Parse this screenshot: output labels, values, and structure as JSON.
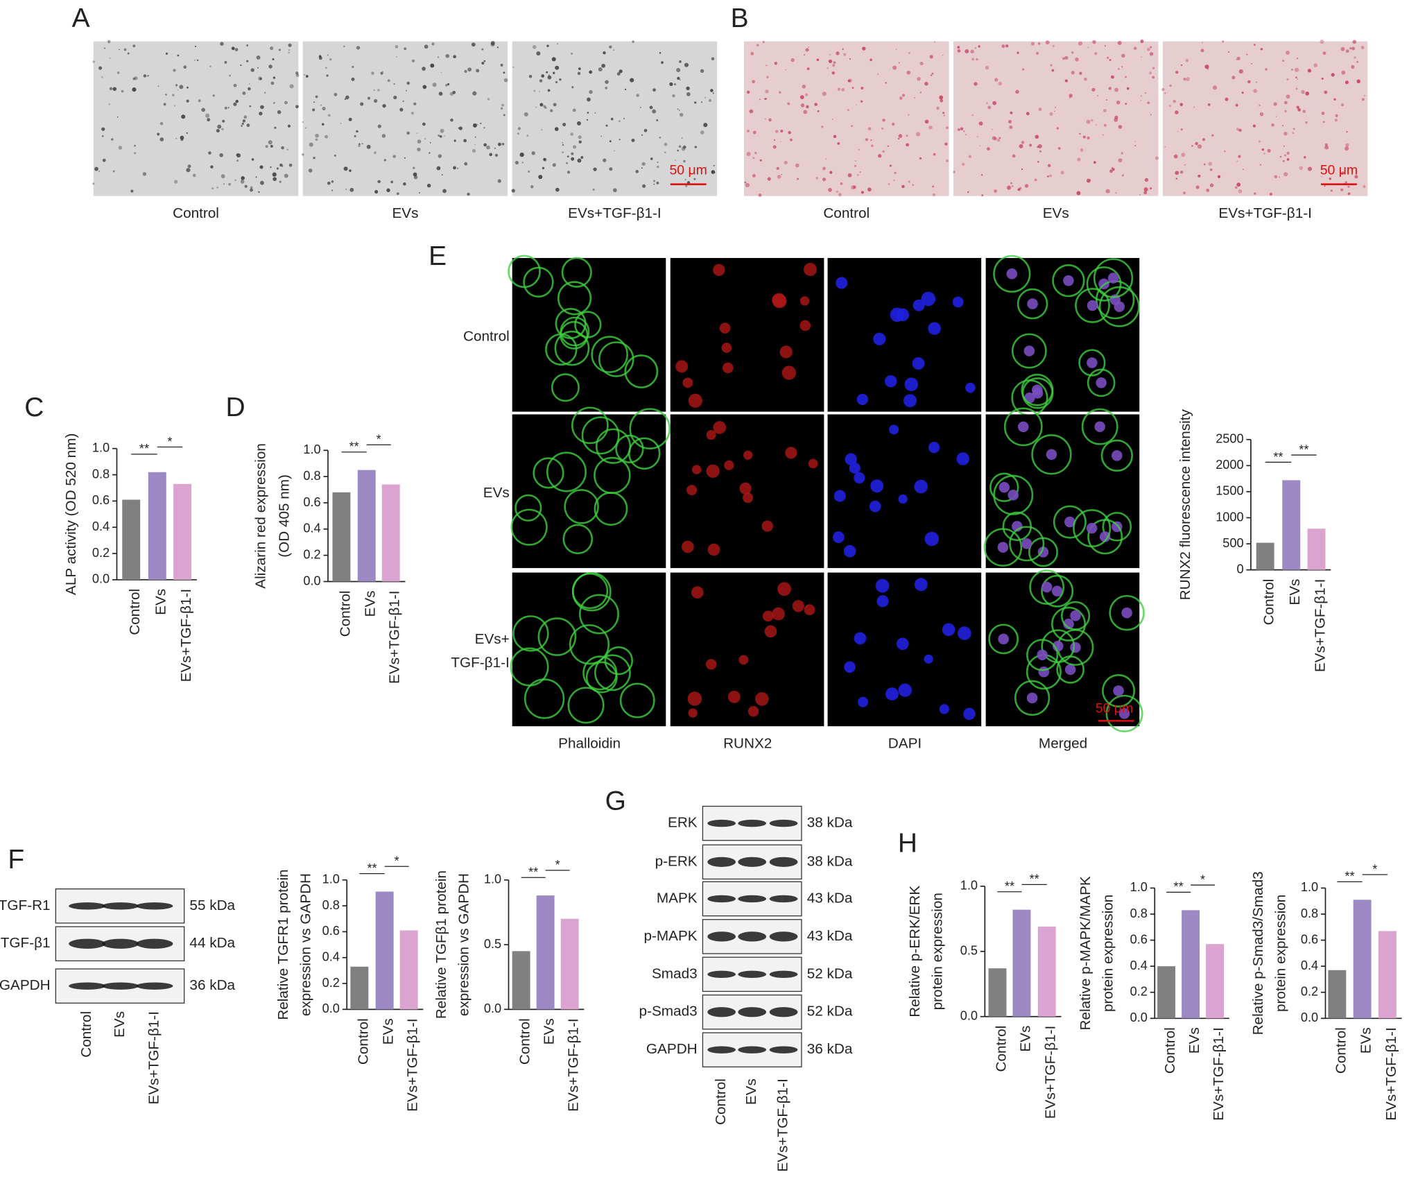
{
  "panel_labels": [
    "A",
    "B",
    "C",
    "D",
    "E",
    "F",
    "G",
    "H"
  ],
  "micrographs": {
    "a": {
      "captions": [
        "Control",
        "EVs",
        "EVs+TGF-β1-I"
      ],
      "scale_bar": "50 μm"
    },
    "b": {
      "captions": [
        "Control",
        "EVs",
        "EVs+TGF-β1-I"
      ],
      "scale_bar": "50 μm"
    },
    "e": {
      "rows": [
        [
          "Control"
        ],
        [
          "EVs"
        ],
        [
          "EVs+",
          "TGF-β1-I"
        ]
      ],
      "columns": [
        "Phalloidin",
        "RUNX2",
        "DAPI",
        "Merged"
      ],
      "scale_bar": "50 μm"
    }
  },
  "blots": {
    "f": {
      "rows": [
        {
          "label": "TGF-R1",
          "size": "55 kDa"
        },
        {
          "label": "TGF-β1",
          "size": "44 kDa"
        },
        {
          "label": "GAPDH",
          "size": "36 kDa"
        }
      ],
      "lanes": [
        "Control",
        "EVs",
        "EVs+TGF-β1-I"
      ]
    },
    "g": {
      "rows": [
        {
          "label": "ERK",
          "size": "38 kDa"
        },
        {
          "label": "p-ERK",
          "size": "38 kDa"
        },
        {
          "label": "MAPK",
          "size": "43 kDa"
        },
        {
          "label": "p-MAPK",
          "size": "43 kDa"
        },
        {
          "label": "Smad3",
          "size": "52 kDa"
        },
        {
          "label": "p-Smad3",
          "size": "52 kDa"
        },
        {
          "label": "GAPDH",
          "size": "36 kDa"
        }
      ],
      "lanes": [
        "Control",
        "EVs",
        "EVs+TGF-β1-I"
      ]
    }
  },
  "chart_data": [
    {
      "type": "bar",
      "ylabel": [
        "ALP activity (OD 520 nm)"
      ],
      "categories": [
        "Control",
        "EVs",
        "EVs+TGF-β1-I"
      ],
      "values": [
        0.61,
        0.82,
        0.73
      ],
      "colors": [
        "#808080",
        "#9c88c2",
        "#dba3d0"
      ],
      "ylim": [
        0,
        1
      ],
      "yticks": [
        {
          "value": 0,
          "label": "0.0"
        },
        0.2,
        0.4,
        0.6,
        0.8,
        {
          "value": 1,
          "label": "1.0"
        }
      ],
      "comparisons": [
        {
          "label": "**",
          "groups": [
            "Control",
            "EVs"
          ]
        },
        {
          "label": "*",
          "groups": [
            "EVs",
            "EVs+TGF-β1-I"
          ]
        }
      ]
    },
    {
      "type": "bar",
      "ylabel": [
        "Alizarin red expression",
        "(OD 405 nm)"
      ],
      "categories": [
        "Control",
        "EVs",
        "EVs+TGF-β1-I"
      ],
      "values": [
        0.68,
        0.85,
        0.74
      ],
      "colors": [
        "#808080",
        "#9c88c2",
        "#dba3d0"
      ],
      "ylim": [
        0,
        1
      ],
      "yticks": [
        {
          "value": 0,
          "label": "0.0"
        },
        0.2,
        0.4,
        0.6,
        0.8,
        {
          "value": 1,
          "label": "1.0"
        }
      ],
      "comparisons": [
        {
          "label": "**",
          "groups": [
            "Control",
            "EVs"
          ]
        },
        {
          "label": "*",
          "groups": [
            "EVs",
            "EVs+TGF-β1-I"
          ]
        }
      ]
    },
    {
      "type": "bar",
      "ylabel": [
        "RUNX2 fluorescence intensity"
      ],
      "categories": [
        "Control",
        "EVs",
        "EVs+TGF-β1-I"
      ],
      "values": [
        520,
        1720,
        790
      ],
      "colors": [
        "#808080",
        "#9c88c2",
        "#dba3d0"
      ],
      "ylim": [
        0,
        2500
      ],
      "yticks": [
        0,
        500,
        1000,
        1500,
        2000,
        2500
      ],
      "comparisons": [
        {
          "label": "**",
          "groups": [
            "Control",
            "EVs"
          ]
        },
        {
          "label": "**",
          "groups": [
            "EVs",
            "EVs+TGF-β1-I"
          ]
        }
      ]
    },
    {
      "type": "bar",
      "ylabel": [
        "Relative TGFR1 protein",
        "expression vs GAPDH"
      ],
      "categories": [
        "Control",
        "EVs",
        "EVs+TGF-β1-I"
      ],
      "values": [
        0.33,
        0.91,
        0.61
      ],
      "colors": [
        "#808080",
        "#9c88c2",
        "#dba3d0"
      ],
      "ylim": [
        0,
        1
      ],
      "yticks": [
        {
          "value": 0,
          "label": "0.0"
        },
        0.2,
        0.4,
        0.6,
        0.8,
        {
          "value": 1,
          "label": "1.0"
        }
      ],
      "comparisons": [
        {
          "label": "**",
          "groups": [
            "Control",
            "EVs"
          ]
        },
        {
          "label": "*",
          "groups": [
            "EVs",
            "EVs+TGF-β1-I"
          ]
        }
      ]
    },
    {
      "type": "bar",
      "ylabel": [
        "Relative TGFβ1 protein",
        "expression vs GAPDH"
      ],
      "categories": [
        "Control",
        "EVs",
        "EVs+TGF-β1-I"
      ],
      "values": [
        0.45,
        0.88,
        0.7
      ],
      "colors": [
        "#808080",
        "#9c88c2",
        "#dba3d0"
      ],
      "ylim": [
        0,
        1
      ],
      "yticks": [
        {
          "value": 0,
          "label": "0.0"
        },
        0.5,
        {
          "value": 1,
          "label": "1.0"
        }
      ],
      "comparisons": [
        {
          "label": "**",
          "groups": [
            "Control",
            "EVs"
          ]
        },
        {
          "label": "*",
          "groups": [
            "EVs",
            "EVs+TGF-β1-I"
          ]
        }
      ]
    },
    {
      "type": "bar",
      "ylabel": [
        "Relative p-ERK/ERK",
        "protein expression"
      ],
      "categories": [
        "Control",
        "EVs",
        "EVs+TGF-β1-I"
      ],
      "values": [
        0.37,
        0.82,
        0.69
      ],
      "colors": [
        "#808080",
        "#9c88c2",
        "#dba3d0"
      ],
      "ylim": [
        0,
        1
      ],
      "yticks": [
        {
          "value": 0,
          "label": "0.0"
        },
        0.5,
        {
          "value": 1,
          "label": "1.0"
        }
      ],
      "comparisons": [
        {
          "label": "**",
          "groups": [
            "Control",
            "EVs"
          ]
        },
        {
          "label": "**",
          "groups": [
            "EVs",
            "EVs+TGF-β1-I"
          ]
        }
      ]
    },
    {
      "type": "bar",
      "ylabel": [
        "Relative p-MAPK/MAPK",
        "protein expression"
      ],
      "categories": [
        "Control",
        "EVs",
        "EVs+TGF-β1-I"
      ],
      "values": [
        0.4,
        0.83,
        0.57
      ],
      "colors": [
        "#808080",
        "#9c88c2",
        "#dba3d0"
      ],
      "ylim": [
        0,
        1
      ],
      "yticks": [
        {
          "value": 0,
          "label": "0.0"
        },
        0.2,
        0.4,
        0.6,
        0.8,
        {
          "value": 1,
          "label": "1.0"
        }
      ],
      "comparisons": [
        {
          "label": "**",
          "groups": [
            "Control",
            "EVs"
          ]
        },
        {
          "label": "*",
          "groups": [
            "EVs",
            "EVs+TGF-β1-I"
          ]
        }
      ]
    },
    {
      "type": "bar",
      "ylabel": [
        "Relative p-Smad3/Smad3",
        "protein expression"
      ],
      "categories": [
        "Control",
        "EVs",
        "EVs+TGF-β1-I"
      ],
      "values": [
        0.37,
        0.91,
        0.67
      ],
      "colors": [
        "#808080",
        "#9c88c2",
        "#dba3d0"
      ],
      "ylim": [
        0,
        1
      ],
      "yticks": [
        {
          "value": 0,
          "label": "0.0"
        },
        0.2,
        0.4,
        0.6,
        0.8,
        {
          "value": 1,
          "label": "1.0"
        }
      ],
      "comparisons": [
        {
          "label": "**",
          "groups": [
            "Control",
            "EVs"
          ]
        },
        {
          "label": "*",
          "groups": [
            "EVs",
            "EVs+TGF-β1-I"
          ]
        }
      ]
    }
  ]
}
